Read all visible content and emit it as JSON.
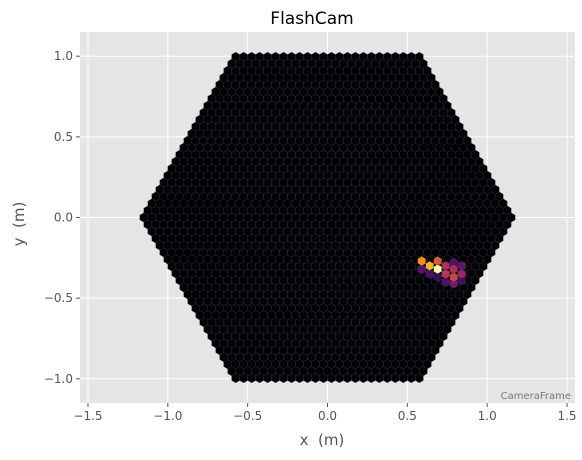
{
  "chart_data": {
    "type": "heatmap",
    "title": "FlashCam",
    "xlabel": "x  (m)",
    "ylabel": "y  (m)",
    "xlim": [
      -1.55,
      1.55
    ],
    "ylim": [
      -1.15,
      1.15
    ],
    "xticks": [
      "−1.5",
      "−1.0",
      "−0.5",
      "0.0",
      "0.5",
      "1.0",
      "1.5"
    ],
    "xtick_values": [
      -1.5,
      -1.0,
      -0.5,
      0.0,
      0.5,
      1.0,
      1.5
    ],
    "yticks": [
      "−1.0",
      "−0.5",
      "0.0",
      "0.5",
      "1.0"
    ],
    "ytick_values": [
      -1.0,
      -0.5,
      0.0,
      0.5,
      1.0
    ],
    "grid": true,
    "camera": {
      "pixel_spacing_m": 0.05,
      "hexagon_flat_radius_m": 1.025,
      "background_value": 0
    },
    "colormap": "inferno",
    "signal_pixels": [
      {
        "x": 0.59,
        "y": -0.27,
        "value": 0.85
      },
      {
        "x": 0.64,
        "y": -0.3,
        "value": 0.9
      },
      {
        "x": 0.69,
        "y": -0.32,
        "value": 1.0
      },
      {
        "x": 0.69,
        "y": -0.27,
        "value": 0.72
      },
      {
        "x": 0.74,
        "y": -0.3,
        "value": 0.55
      },
      {
        "x": 0.74,
        "y": -0.35,
        "value": 0.6
      },
      {
        "x": 0.79,
        "y": -0.32,
        "value": 0.55
      },
      {
        "x": 0.79,
        "y": -0.37,
        "value": 0.65
      },
      {
        "x": 0.84,
        "y": -0.35,
        "value": 0.5
      },
      {
        "x": 0.84,
        "y": -0.3,
        "value": 0.35
      },
      {
        "x": 0.79,
        "y": -0.28,
        "value": 0.3
      },
      {
        "x": 0.64,
        "y": -0.35,
        "value": 0.28
      },
      {
        "x": 0.59,
        "y": -0.32,
        "value": 0.32
      },
      {
        "x": 0.74,
        "y": -0.4,
        "value": 0.3
      },
      {
        "x": 0.79,
        "y": -0.41,
        "value": 0.4
      },
      {
        "x": 0.84,
        "y": -0.39,
        "value": 0.25
      },
      {
        "x": 0.69,
        "y": -0.37,
        "value": 0.22
      }
    ],
    "annotation": "CameraFrame"
  }
}
